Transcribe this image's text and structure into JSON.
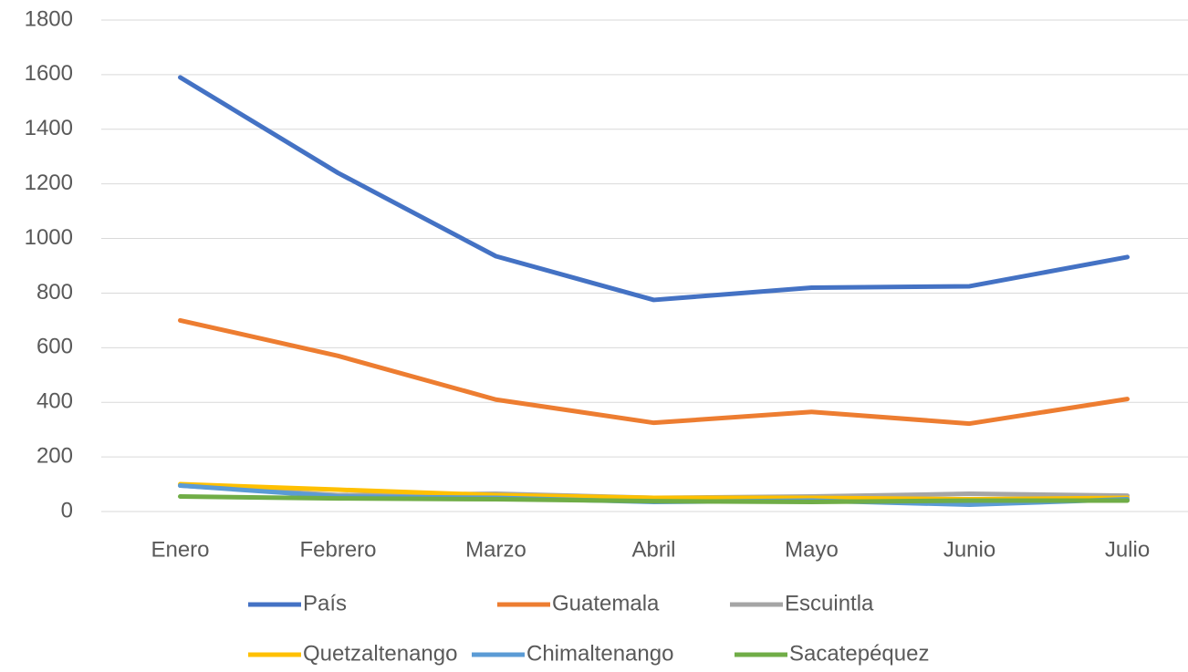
{
  "chart_data": {
    "type": "line",
    "categories": [
      "Enero",
      "Febrero",
      "Marzo",
      "Abril",
      "Mayo",
      "Junio",
      "Julio"
    ],
    "series": [
      {
        "name": "País",
        "color": "#4472c4",
        "values": [
          1590,
          1240,
          935,
          775,
          820,
          825,
          932
        ]
      },
      {
        "name": "Guatemala",
        "color": "#ed7d31",
        "values": [
          700,
          570,
          410,
          325,
          365,
          322,
          412
        ]
      },
      {
        "name": "Escuintla",
        "color": "#a5a5a5",
        "values": [
          95,
          60,
          65,
          50,
          55,
          65,
          58
        ]
      },
      {
        "name": "Quetzaltenango",
        "color": "#ffc000",
        "values": [
          100,
          80,
          60,
          50,
          50,
          45,
          50
        ]
      },
      {
        "name": "Chimaltenango",
        "color": "#5b9bd5",
        "values": [
          95,
          55,
          50,
          35,
          40,
          25,
          45
        ]
      },
      {
        "name": "Sacatepéquez",
        "color": "#70ad47",
        "values": [
          55,
          48,
          45,
          38,
          35,
          40,
          40
        ]
      }
    ],
    "ylim": [
      0,
      1800
    ],
    "yticks": [
      0,
      200,
      400,
      600,
      800,
      1000,
      1200,
      1400,
      1600,
      1800
    ],
    "grid": true,
    "legend": "bottom"
  }
}
